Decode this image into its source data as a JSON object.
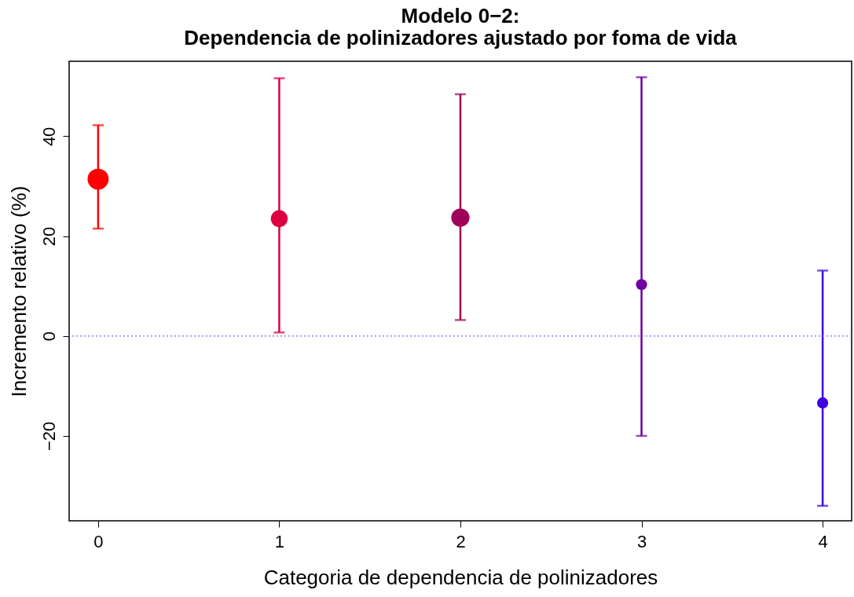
{
  "chart_data": {
    "type": "bubble",
    "title": [
      "Modelo 0−2:",
      "Dependencia de polinizadores ajustado por foma de vida"
    ],
    "xlabel": "Categoria de dependencia de polinizadores",
    "ylabel": "Incremento relativo (%)",
    "x": [
      0,
      1,
      2,
      3,
      4
    ],
    "values": [
      31.4,
      23.5,
      23.7,
      10.3,
      -13.4
    ],
    "sizes": [
      1,
      0.64,
      0.75,
      0.28,
      0.28
    ],
    "colors": [
      "#ff0000",
      "#dc0040",
      "#a0005a",
      "#7000a0",
      "#4000e0"
    ],
    "errors": [
      [
        21.5,
        42.2
      ],
      [
        0.7,
        51.6
      ],
      [
        3.2,
        48.4
      ],
      [
        -20,
        51.8
      ],
      [
        -34,
        13.1
      ]
    ],
    "xlim": [
      -0.16,
      4.16
    ],
    "xticks": [
      0,
      1,
      2,
      3,
      4
    ],
    "ylim": [
      -37,
      55
    ],
    "yticks": [
      -20,
      0,
      20,
      40
    ],
    "ref_lines": [
      {
        "axis": "y",
        "value": 0,
        "color": "#8080ff",
        "line_style": "dotted"
      }
    ],
    "grid": false,
    "marker": "circle"
  }
}
